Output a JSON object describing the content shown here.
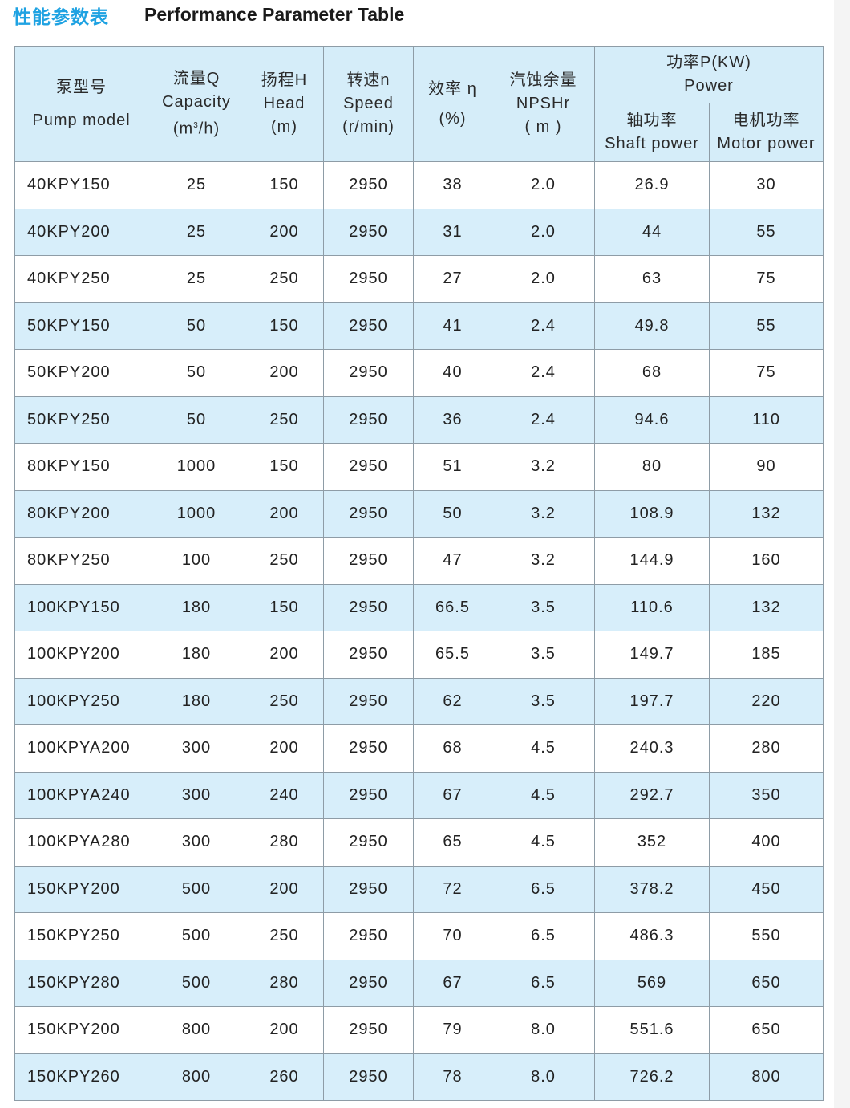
{
  "title_cn": "性能参数表",
  "title_en": "Performance Parameter Table",
  "colors": {
    "title_accent": "#1ea2e2",
    "header_bg": "#d5edf9",
    "stripe_bg": "#d7eefa",
    "border": "#8e9ca6"
  },
  "headers": {
    "model": {
      "cn": "泵型号",
      "en": "Pump model"
    },
    "capacity": {
      "cn": "流量Q",
      "en": "Capacity",
      "unit_pre": "(m",
      "unit_sup": "3",
      "unit_post": "/h)"
    },
    "head": {
      "cn": "扬程H",
      "en": "Head",
      "unit": "(m)"
    },
    "speed": {
      "cn": "转速n",
      "en": "Speed",
      "unit": "(r/min)"
    },
    "efficiency": {
      "cn": "效率 η",
      "unit": "(%)"
    },
    "npshr": {
      "cn": "汽蚀余量",
      "en": "NPSHr",
      "unit": "( m )"
    },
    "power": {
      "cn": "功率P(KW)",
      "en": "Power"
    },
    "shaft": {
      "cn": "轴功率",
      "en": "Shaft power"
    },
    "motor": {
      "cn": "电机功率",
      "en": "Motor power"
    }
  },
  "rows": [
    [
      "40KPY150",
      "25",
      "150",
      "2950",
      "38",
      "2.0",
      "26.9",
      "30"
    ],
    [
      "40KPY200",
      "25",
      "200",
      "2950",
      "31",
      "2.0",
      "44",
      "55"
    ],
    [
      "40KPY250",
      "25",
      "250",
      "2950",
      "27",
      "2.0",
      "63",
      "75"
    ],
    [
      "50KPY150",
      "50",
      "150",
      "2950",
      "41",
      "2.4",
      "49.8",
      "55"
    ],
    [
      "50KPY200",
      "50",
      "200",
      "2950",
      "40",
      "2.4",
      "68",
      "75"
    ],
    [
      "50KPY250",
      "50",
      "250",
      "2950",
      "36",
      "2.4",
      "94.6",
      "110"
    ],
    [
      "80KPY150",
      "1000",
      "150",
      "2950",
      "51",
      "3.2",
      "80",
      "90"
    ],
    [
      "80KPY200",
      "1000",
      "200",
      "2950",
      "50",
      "3.2",
      "108.9",
      "132"
    ],
    [
      "80KPY250",
      "100",
      "250",
      "2950",
      "47",
      "3.2",
      "144.9",
      "160"
    ],
    [
      "100KPY150",
      "180",
      "150",
      "2950",
      "66.5",
      "3.5",
      "110.6",
      "132"
    ],
    [
      "100KPY200",
      "180",
      "200",
      "2950",
      "65.5",
      "3.5",
      "149.7",
      "185"
    ],
    [
      "100KPY250",
      "180",
      "250",
      "2950",
      "62",
      "3.5",
      "197.7",
      "220"
    ],
    [
      "100KPYA200",
      "300",
      "200",
      "2950",
      "68",
      "4.5",
      "240.3",
      "280"
    ],
    [
      "100KPYA240",
      "300",
      "240",
      "2950",
      "67",
      "4.5",
      "292.7",
      "350"
    ],
    [
      "100KPYA280",
      "300",
      "280",
      "2950",
      "65",
      "4.5",
      "352",
      "400"
    ],
    [
      "150KPY200",
      "500",
      "200",
      "2950",
      "72",
      "6.5",
      "378.2",
      "450"
    ],
    [
      "150KPY250",
      "500",
      "250",
      "2950",
      "70",
      "6.5",
      "486.3",
      "550"
    ],
    [
      "150KPY280",
      "500",
      "280",
      "2950",
      "67",
      "6.5",
      "569",
      "650"
    ],
    [
      "150KPY200",
      "800",
      "200",
      "2950",
      "79",
      "8.0",
      "551.6",
      "650"
    ],
    [
      "150KPY260",
      "800",
      "260",
      "2950",
      "78",
      "8.0",
      "726.2",
      "800"
    ]
  ]
}
